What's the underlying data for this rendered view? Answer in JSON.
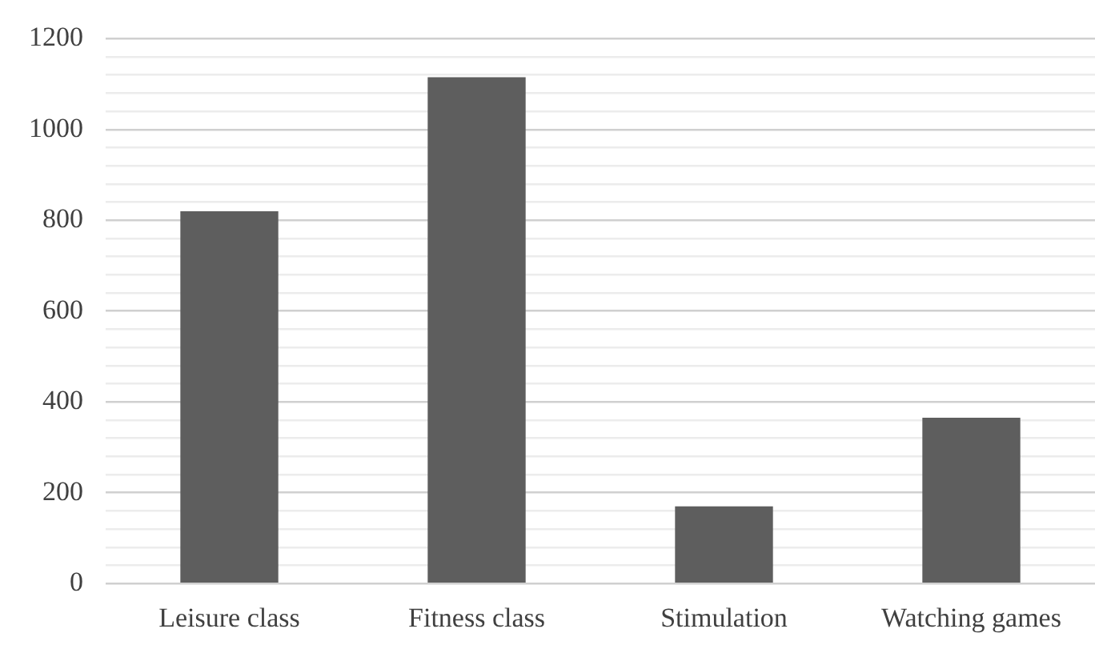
{
  "chart_data": {
    "type": "bar",
    "categories": [
      "Leisure class",
      "Fitness class",
      "Stimulation",
      "Watching games"
    ],
    "values": [
      820,
      1115,
      170,
      365
    ],
    "color": "#5e5e5e",
    "ylim": [
      0,
      1200
    ],
    "yticks": [
      0,
      {
        "value": 40,
        "label": null
      },
      {
        "value": 80,
        "label": null
      },
      {
        "value": 120,
        "label": null
      },
      {
        "value": 160,
        "label": null
      },
      200,
      {
        "value": 240,
        "label": null
      },
      {
        "value": 280,
        "label": null
      },
      {
        "value": 320,
        "label": null
      },
      {
        "value": 360,
        "label": null
      },
      400,
      {
        "value": 440,
        "label": null
      },
      {
        "value": 480,
        "label": null
      },
      {
        "value": 520,
        "label": null
      },
      {
        "value": 560,
        "label": null
      },
      600,
      {
        "value": 640,
        "label": null
      },
      {
        "value": 680,
        "label": null
      },
      {
        "value": 720,
        "label": null
      },
      {
        "value": 760,
        "label": null
      },
      800,
      {
        "value": 840,
        "label": null
      },
      {
        "value": 880,
        "label": null
      },
      {
        "value": 920,
        "label": null
      },
      {
        "value": 960,
        "label": null
      },
      1000,
      {
        "value": 1040,
        "label": null
      },
      {
        "value": 1080,
        "label": null
      },
      {
        "value": 1120,
        "label": null
      },
      {
        "value": 1160,
        "label": null
      },
      1200
    ],
    "grid": "y",
    "legend": false
  }
}
